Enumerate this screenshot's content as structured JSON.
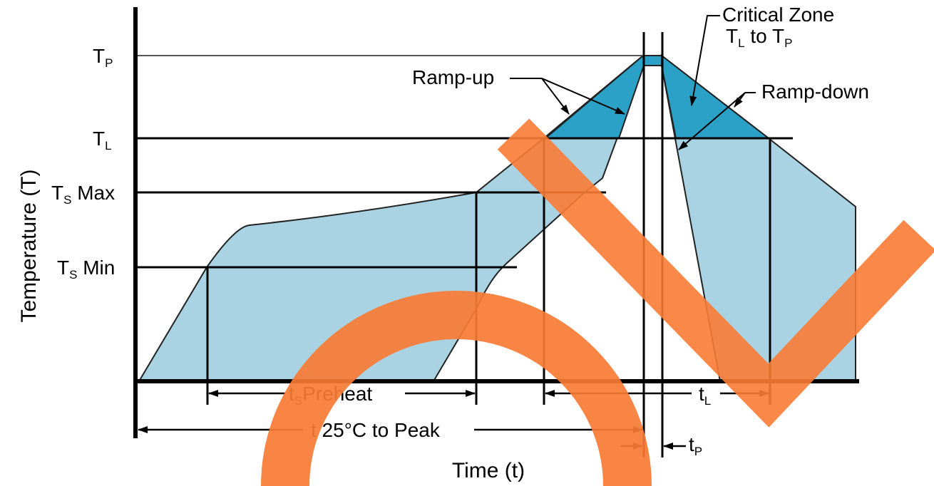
{
  "colors": {
    "envelope_fill": "#a9d3e2",
    "critical_fill": "#2ba1c7",
    "axis": "#000000",
    "overlay": "#f87b35",
    "background": "#ffffff"
  },
  "axes": {
    "x_title": "Time (t)",
    "y_title": "Temperature (T)"
  },
  "levels": {
    "tp": {
      "main": "T",
      "sub": "P"
    },
    "tl": {
      "main": "T",
      "sub": "L"
    },
    "ts_max": {
      "main": "T",
      "sub": "S",
      "suffix": " Max"
    },
    "ts_min": {
      "main": "T",
      "sub": "S",
      "suffix": " Min"
    }
  },
  "annotations": {
    "critical_zone_line1": "Critical Zone",
    "critical_zone_line2": {
      "a": "T",
      "a_sub": "L",
      "mid": " to T",
      "b_sub": "P"
    },
    "ramp_up": "Ramp-up",
    "ramp_down": "Ramp-down"
  },
  "intervals": {
    "ts_preheat": {
      "main": "t",
      "sub": "S",
      "suffix": "Preheat"
    },
    "t25_peak": "t 25°C to Peak",
    "tl": {
      "main": "t",
      "sub": "L"
    },
    "tp": {
      "main": "t",
      "sub": "P"
    }
  },
  "overlay_marks": {
    "circle": "circle-mark",
    "check": "check-mark"
  }
}
